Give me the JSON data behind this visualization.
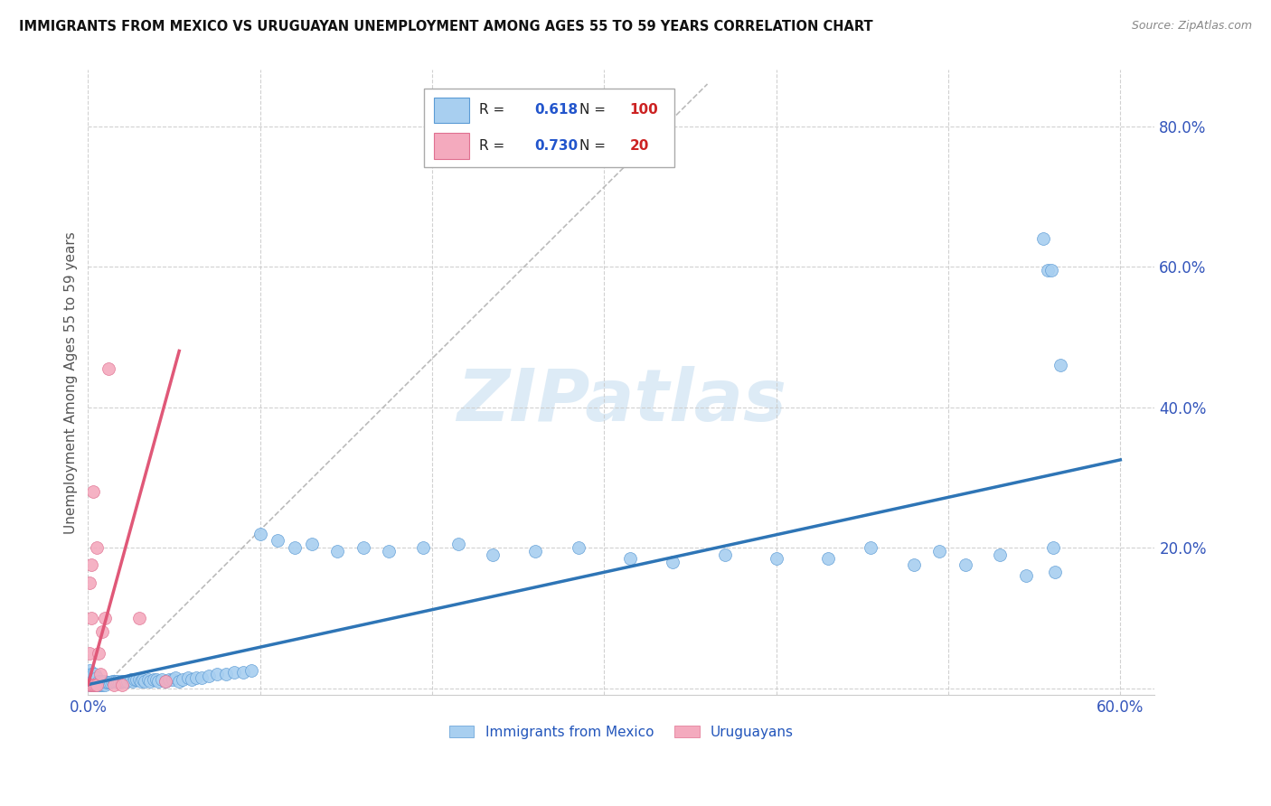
{
  "title": "IMMIGRANTS FROM MEXICO VS URUGUAYAN UNEMPLOYMENT AMONG AGES 55 TO 59 YEARS CORRELATION CHART",
  "source": "Source: ZipAtlas.com",
  "ylabel_label": "Unemployment Among Ages 55 to 59 years",
  "xlim": [
    0.0,
    0.62
  ],
  "ylim": [
    -0.01,
    0.88
  ],
  "blue_color": "#A8CFF0",
  "pink_color": "#F4AABE",
  "blue_edge_color": "#5B9BD5",
  "pink_edge_color": "#E07090",
  "blue_line_color": "#2E75B6",
  "pink_line_color": "#E05878",
  "gray_dash_color": "#BBBBBB",
  "watermark_color": "#D8E8F5",
  "legend_R_blue": "0.618",
  "legend_N_blue": "100",
  "legend_R_pink": "0.730",
  "legend_N_pink": "20",
  "blue_line_x0": 0.0,
  "blue_line_x1": 0.6,
  "blue_line_y0": 0.005,
  "blue_line_y1": 0.325,
  "pink_line_x0": 0.0,
  "pink_line_x1": 0.053,
  "pink_line_y0": 0.005,
  "pink_line_y1": 0.48,
  "gray_line_x0": 0.01,
  "gray_line_x1": 0.36,
  "gray_line_y0": 0.005,
  "gray_line_y1": 0.86,
  "blue_x": [
    0.001,
    0.001,
    0.001,
    0.001,
    0.001,
    0.002,
    0.002,
    0.002,
    0.002,
    0.003,
    0.003,
    0.003,
    0.003,
    0.004,
    0.004,
    0.004,
    0.005,
    0.005,
    0.005,
    0.006,
    0.006,
    0.007,
    0.007,
    0.008,
    0.008,
    0.009,
    0.01,
    0.01,
    0.011,
    0.012,
    0.013,
    0.014,
    0.015,
    0.016,
    0.017,
    0.018,
    0.019,
    0.02,
    0.021,
    0.022,
    0.023,
    0.025,
    0.026,
    0.027,
    0.028,
    0.03,
    0.031,
    0.032,
    0.033,
    0.035,
    0.036,
    0.038,
    0.04,
    0.041,
    0.043,
    0.045,
    0.047,
    0.049,
    0.051,
    0.053,
    0.055,
    0.058,
    0.06,
    0.063,
    0.066,
    0.07,
    0.075,
    0.08,
    0.085,
    0.09,
    0.095,
    0.1,
    0.11,
    0.12,
    0.13,
    0.145,
    0.16,
    0.175,
    0.195,
    0.215,
    0.235,
    0.26,
    0.285,
    0.315,
    0.34,
    0.37,
    0.4,
    0.43,
    0.455,
    0.48,
    0.495,
    0.51,
    0.53,
    0.545,
    0.555,
    0.558,
    0.56,
    0.561,
    0.562,
    0.565
  ],
  "blue_y": [
    0.005,
    0.01,
    0.015,
    0.02,
    0.025,
    0.005,
    0.01,
    0.015,
    0.02,
    0.005,
    0.01,
    0.015,
    0.02,
    0.005,
    0.01,
    0.02,
    0.005,
    0.01,
    0.015,
    0.005,
    0.01,
    0.005,
    0.01,
    0.005,
    0.01,
    0.008,
    0.005,
    0.01,
    0.008,
    0.008,
    0.008,
    0.01,
    0.01,
    0.01,
    0.01,
    0.008,
    0.01,
    0.01,
    0.01,
    0.01,
    0.01,
    0.012,
    0.01,
    0.012,
    0.012,
    0.012,
    0.01,
    0.012,
    0.01,
    0.012,
    0.01,
    0.012,
    0.012,
    0.01,
    0.012,
    0.01,
    0.012,
    0.012,
    0.015,
    0.01,
    0.012,
    0.015,
    0.012,
    0.015,
    0.015,
    0.018,
    0.02,
    0.02,
    0.022,
    0.022,
    0.025,
    0.22,
    0.21,
    0.2,
    0.205,
    0.195,
    0.2,
    0.195,
    0.2,
    0.205,
    0.19,
    0.195,
    0.2,
    0.185,
    0.18,
    0.19,
    0.185,
    0.185,
    0.2,
    0.175,
    0.195,
    0.175,
    0.19,
    0.16,
    0.64,
    0.595,
    0.595,
    0.2,
    0.165,
    0.46
  ],
  "pink_x": [
    0.001,
    0.001,
    0.001,
    0.002,
    0.002,
    0.002,
    0.003,
    0.003,
    0.004,
    0.005,
    0.005,
    0.006,
    0.007,
    0.008,
    0.01,
    0.012,
    0.015,
    0.02,
    0.03,
    0.045
  ],
  "pink_y": [
    0.005,
    0.05,
    0.15,
    0.005,
    0.1,
    0.175,
    0.005,
    0.28,
    0.005,
    0.005,
    0.2,
    0.05,
    0.02,
    0.08,
    0.1,
    0.455,
    0.005,
    0.005,
    0.1,
    0.01
  ]
}
